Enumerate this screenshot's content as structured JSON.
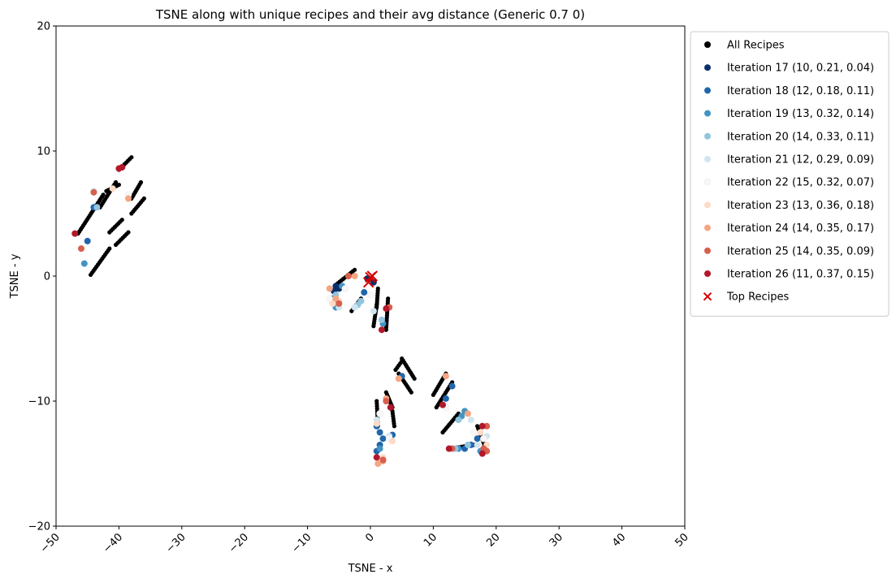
{
  "chart_data": {
    "type": "scatter",
    "title": "TSNE along with unique recipes and their avg distance (Generic 0.7 0)",
    "xlabel": "TSNE - x",
    "ylabel": "TSNE - y",
    "xlim": [
      -50,
      50
    ],
    "ylim": [
      -20,
      20
    ],
    "xticks": [
      -50,
      -40,
      -30,
      -20,
      -10,
      0,
      10,
      20,
      30,
      40,
      50
    ],
    "yticks": [
      -20,
      -10,
      0,
      10,
      20
    ],
    "xtick_labels": [
      "−50",
      "−40",
      "−30",
      "−20",
      "−10",
      "0",
      "10",
      "20",
      "30",
      "40",
      "50"
    ],
    "ytick_labels": [
      "−20",
      "−10",
      "0",
      "10",
      "20"
    ],
    "xtick_rotation": -45,
    "grid": false,
    "legend_position": "outside-top-right",
    "series": [
      {
        "name": "All Recipes",
        "color": "#000000",
        "marker": "circle",
        "segments": [
          [
            [
              -44.5,
              0.1
            ],
            [
              -41.5,
              2.2
            ]
          ],
          [
            [
              -46.5,
              3.4
            ],
            [
              -42.5,
              6.5
            ]
          ],
          [
            [
              -40.5,
              2.5
            ],
            [
              -38.5,
              3.5
            ]
          ],
          [
            [
              -41.5,
              3.5
            ],
            [
              -39.5,
              4.5
            ]
          ],
          [
            [
              -43.0,
              5.5
            ],
            [
              -40.5,
              7.5
            ]
          ],
          [
            [
              -40.0,
              8.5
            ],
            [
              -38.0,
              9.5
            ]
          ],
          [
            [
              -38.0,
              5.0
            ],
            [
              -36.0,
              6.2
            ]
          ],
          [
            [
              -38.0,
              6.2
            ],
            [
              -36.5,
              7.5
            ]
          ],
          [
            [
              -42.0,
              6.8
            ],
            [
              -40.0,
              7.3
            ]
          ],
          [
            [
              -5.5,
              -0.7
            ],
            [
              -2.5,
              0.5
            ]
          ],
          [
            [
              -3.0,
              -2.8
            ],
            [
              -1.5,
              -1.8
            ]
          ],
          [
            [
              0.5,
              -4.0
            ],
            [
              1.0,
              -2.3
            ]
          ],
          [
            [
              1.0,
              -2.5
            ],
            [
              1.2,
              -1.0
            ]
          ],
          [
            [
              2.5,
              -4.3
            ],
            [
              2.8,
              -1.8
            ]
          ],
          [
            [
              4.0,
              -7.5
            ],
            [
              5.0,
              -6.8
            ]
          ],
          [
            [
              5.0,
              -6.6
            ],
            [
              7.0,
              -8.2
            ]
          ],
          [
            [
              4.5,
              -7.8
            ],
            [
              6.5,
              -9.3
            ]
          ],
          [
            [
              1.0,
              -10.0
            ],
            [
              1.2,
              -12.0
            ]
          ],
          [
            [
              2.5,
              -9.3
            ],
            [
              3.5,
              -10.5
            ]
          ],
          [
            [
              3.5,
              -10.8
            ],
            [
              3.8,
              -12.0
            ]
          ],
          [
            [
              10.0,
              -9.5
            ],
            [
              12.0,
              -7.8
            ]
          ],
          [
            [
              10.5,
              -10.5
            ],
            [
              13.0,
              -8.5
            ]
          ],
          [
            [
              11.5,
              -12.5
            ],
            [
              14.0,
              -11.0
            ]
          ],
          [
            [
              12.5,
              -13.8
            ],
            [
              16.5,
              -13.5
            ]
          ],
          [
            [
              17.0,
              -12.0
            ],
            [
              18.5,
              -14.0
            ]
          ]
        ]
      },
      {
        "name": "Iteration 17 (10, 0.21, 0.04)",
        "color": "#08306b",
        "marker": "circle",
        "points": [
          [
            -5.5,
            -0.8
          ],
          [
            -5.8,
            -1.2
          ],
          [
            -6.0,
            -2.0
          ],
          [
            0.5,
            -0.5
          ],
          [
            -5.0,
            -1.0
          ],
          [
            -0.5,
            -0.2
          ]
        ]
      },
      {
        "name": "Iteration 18 (12, 0.18, 0.11)",
        "color": "#2166ac",
        "marker": "circle",
        "points": [
          [
            -45.0,
            2.8
          ],
          [
            -44.0,
            5.5
          ],
          [
            -6.0,
            -1.8
          ],
          [
            -1.0,
            -1.3
          ],
          [
            1.0,
            -12.0
          ],
          [
            1.5,
            -13.5
          ],
          [
            1.0,
            -14.0
          ],
          [
            3.5,
            -12.7
          ],
          [
            2.0,
            -13.0
          ],
          [
            1.5,
            -12.5
          ],
          [
            5.0,
            -8.0
          ],
          [
            12.0,
            -9.8
          ],
          [
            13.0,
            -8.8
          ],
          [
            17.0,
            -13.0
          ],
          [
            15.0,
            -13.8
          ],
          [
            16.0,
            -13.5
          ]
        ]
      },
      {
        "name": "Iteration 19 (13, 0.32, 0.14)",
        "color": "#4393c3",
        "marker": "circle",
        "points": [
          [
            -45.5,
            1.0
          ],
          [
            -5.5,
            -2.5
          ],
          [
            -4.5,
            -0.8
          ],
          [
            2.0,
            -3.8
          ],
          [
            1.5,
            -13.8
          ],
          [
            14.5,
            -11.2
          ],
          [
            15.0,
            -10.8
          ],
          [
            14.0,
            -13.8
          ],
          [
            17.5,
            -14.0
          ]
        ]
      },
      {
        "name": "Iteration 20 (14, 0.33, 0.11)",
        "color": "#92c5de",
        "marker": "circle",
        "points": [
          [
            -43.5,
            5.5
          ],
          [
            -2.0,
            -2.3
          ],
          [
            -1.5,
            -2.0
          ],
          [
            1.8,
            -3.5
          ],
          [
            -5.5,
            -1.5
          ],
          [
            14.0,
            -11.5
          ],
          [
            13.5,
            -13.8
          ],
          [
            15.5,
            -13.5
          ]
        ]
      },
      {
        "name": "Iteration 21 (12, 0.29, 0.09)",
        "color": "#d1e5f0",
        "marker": "circle",
        "points": [
          [
            -44.0,
            6.8
          ],
          [
            -5.0,
            -2.5
          ],
          [
            -2.5,
            -2.5
          ],
          [
            0.5,
            -2.8
          ],
          [
            1.0,
            -11.5
          ],
          [
            3.0,
            -12.8
          ],
          [
            16.0,
            -11.5
          ],
          [
            17.0,
            -13.5
          ],
          [
            18.5,
            -12.8
          ]
        ]
      },
      {
        "name": "Iteration 22 (15, 0.32, 0.07)",
        "color": "#f7f7f7",
        "marker": "circle",
        "points": [
          [
            -38.5,
            6.5
          ],
          [
            -6.5,
            -1.8
          ],
          [
            -4.0,
            -1.0
          ],
          [
            0.0,
            -1.5
          ],
          [
            1.5,
            -11.0
          ],
          [
            3.0,
            -13.0
          ],
          [
            12.0,
            -10.5
          ],
          [
            16.5,
            -12.5
          ],
          [
            18.0,
            -13.0
          ]
        ]
      },
      {
        "name": "Iteration 23 (13, 0.36, 0.18)",
        "color": "#fddbc7",
        "marker": "circle",
        "points": [
          [
            -41.0,
            7.0
          ],
          [
            -6.0,
            -2.2
          ],
          [
            -5.0,
            -2.0
          ],
          [
            1.0,
            -11.8
          ],
          [
            2.0,
            -14.5
          ],
          [
            3.5,
            -13.2
          ],
          [
            18.5,
            -13.5
          ],
          [
            17.5,
            -12.5
          ]
        ]
      },
      {
        "name": "Iteration 24 (14, 0.35, 0.17)",
        "color": "#f4a582",
        "marker": "circle",
        "points": [
          [
            -38.5,
            6.2
          ],
          [
            -6.5,
            -1.0
          ],
          [
            -5.5,
            -1.8
          ],
          [
            -2.5,
            0.0
          ],
          [
            2.5,
            -9.8
          ],
          [
            2.0,
            -14.8
          ],
          [
            1.2,
            -15.0
          ],
          [
            4.5,
            -8.2
          ],
          [
            12.0,
            -8.0
          ],
          [
            15.5,
            -11.0
          ],
          [
            18.0,
            -13.8
          ],
          [
            18.5,
            -14.0
          ]
        ]
      },
      {
        "name": "Iteration 25 (14, 0.35, 0.09)",
        "color": "#d6604d",
        "marker": "circle",
        "points": [
          [
            -46.0,
            2.2
          ],
          [
            -44.0,
            6.7
          ],
          [
            -5.0,
            -2.2
          ],
          [
            -3.5,
            0.0
          ],
          [
            3.0,
            -2.5
          ],
          [
            2.5,
            -10.0
          ],
          [
            2.0,
            -14.7
          ],
          [
            18.0,
            -13.8
          ],
          [
            18.5,
            -12.0
          ],
          [
            18.5,
            -14.0
          ],
          [
            13.0,
            -13.8
          ]
        ]
      },
      {
        "name": "Iteration 26 (11, 0.37, 0.15)",
        "color": "#b2182b",
        "marker": "circle",
        "points": [
          [
            -40.0,
            8.6
          ],
          [
            -39.5,
            8.7
          ],
          [
            -47.0,
            3.4
          ],
          [
            2.5,
            -2.6
          ],
          [
            1.8,
            -4.3
          ],
          [
            3.2,
            -10.5
          ],
          [
            1.0,
            -14.5
          ],
          [
            11.5,
            -10.3
          ],
          [
            12.5,
            -13.8
          ],
          [
            17.8,
            -12.0
          ],
          [
            17.8,
            -14.2
          ]
        ]
      },
      {
        "name": "Top Recipes",
        "color": "#d40000",
        "marker": "x",
        "points": [
          [
            0.3,
            0.0
          ],
          [
            -0.3,
            -0.5
          ],
          [
            0.0,
            -0.1
          ]
        ]
      }
    ]
  }
}
